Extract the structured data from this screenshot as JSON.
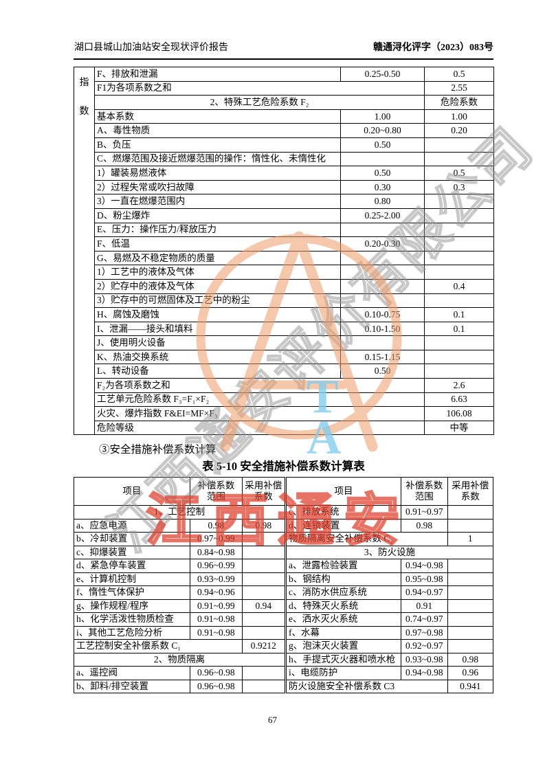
{
  "header": {
    "left": "湖口县城山加油站安全现状评价报告",
    "right": "赣通浔化评字（2023）083号"
  },
  "table1": {
    "side_label": "指数",
    "rows": [
      [
        {
          "t": "F、排放和泄漏"
        },
        {
          "t": "0.25-0.50",
          "al": "c"
        },
        {
          "t": "0.5",
          "al": "c"
        }
      ],
      [
        {
          "t": "F1为各项系数之和",
          "cs": 2
        },
        {
          "t": "2.55",
          "al": "c"
        }
      ],
      [
        {
          "t": "2、特殊工艺危险系数 F₂",
          "cs": 2,
          "al": "c"
        },
        {
          "t": "危险系数",
          "al": "c"
        }
      ],
      [
        {
          "t": "基本系数"
        },
        {
          "t": "1.00",
          "al": "c"
        },
        {
          "t": "1.00",
          "al": "c"
        }
      ],
      [
        {
          "t": "A、毒性物质"
        },
        {
          "t": "0.20~0.80",
          "al": "c"
        },
        {
          "t": "0.20",
          "al": "c"
        }
      ],
      [
        {
          "t": "B、负压"
        },
        {
          "t": "0.50",
          "al": "c"
        },
        {
          "t": ""
        }
      ],
      [
        {
          "t": "C、燃爆范围及接近燃爆范围的操作：惰性化、未惰性化"
        },
        {
          "t": ""
        },
        {
          "t": ""
        }
      ],
      [
        {
          "t": "1）罐装易燃液体"
        },
        {
          "t": "0.50",
          "al": "c"
        },
        {
          "t": "0.5",
          "al": "c"
        }
      ],
      [
        {
          "t": "2）过程失常或吹扫故障"
        },
        {
          "t": "0.30",
          "al": "c"
        },
        {
          "t": "0.3",
          "al": "c"
        }
      ],
      [
        {
          "t": "3）一直在燃爆范围内"
        },
        {
          "t": "0.80",
          "al": "c"
        },
        {
          "t": ""
        }
      ],
      [
        {
          "t": "D、粉尘爆炸"
        },
        {
          "t": "0.25-2.00",
          "al": "c"
        },
        {
          "t": ""
        }
      ],
      [
        {
          "t": "E、压力：操作压力/释放压力"
        },
        {
          "t": ""
        },
        {
          "t": ""
        }
      ],
      [
        {
          "t": "F、低温"
        },
        {
          "t": "0.20-0.30",
          "al": "c"
        },
        {
          "t": ""
        }
      ],
      [
        {
          "t": "G、易燃及不稳定物质的质量"
        },
        {
          "t": ""
        },
        {
          "t": ""
        }
      ],
      [
        {
          "t": "1）工艺中的液体及气体"
        },
        {
          "t": ""
        },
        {
          "t": ""
        }
      ],
      [
        {
          "t": "2）贮存中的液体及气体"
        },
        {
          "t": ""
        },
        {
          "t": "0.4",
          "al": "c"
        }
      ],
      [
        {
          "t": "3）贮存中的可燃固体及工艺中的粉尘"
        },
        {
          "t": ""
        },
        {
          "t": ""
        }
      ],
      [
        {
          "t": "H、腐蚀及磨蚀"
        },
        {
          "t": "0.10-0.75",
          "al": "c"
        },
        {
          "t": "0.1",
          "al": "c"
        }
      ],
      [
        {
          "t": "I、泄漏——接头和填料"
        },
        {
          "t": "0.10-1.50",
          "al": "c"
        },
        {
          "t": "0.1",
          "al": "c"
        }
      ],
      [
        {
          "t": "J、使用明火设备"
        },
        {
          "t": ""
        },
        {
          "t": ""
        }
      ],
      [
        {
          "t": "K、热油交换系统"
        },
        {
          "t": "0.15-1.15",
          "al": "c"
        },
        {
          "t": ""
        }
      ],
      [
        {
          "t": "L、转动设备"
        },
        {
          "t": "0.50",
          "al": "c"
        },
        {
          "t": ""
        }
      ],
      [
        {
          "t": "F₂为各项系数之和",
          "cs": 2
        },
        {
          "t": "2.6",
          "al": "c"
        }
      ],
      [
        {
          "t": "工艺单元危险系数 F₃=F₁×F₂",
          "cs": 2
        },
        {
          "t": "6.63",
          "al": "c"
        }
      ],
      [
        {
          "t": "火灾、爆炸指数 F&EI=MF×F₃",
          "cs": 2
        },
        {
          "t": "106.08",
          "al": "c"
        }
      ],
      [
        {
          "t": "危险等级",
          "cs": 2
        },
        {
          "t": "中等",
          "al": "c"
        }
      ]
    ]
  },
  "section_heading": "③安全措施补偿系数计算",
  "table2": {
    "title": "表 5-10 安全措施补偿系数计算表",
    "headers": [
      "项目",
      "补偿系数\n范围",
      "采用补偿\n系数",
      "项目",
      "补偿系数\n范围",
      "采用补偿\n系数"
    ],
    "rows": [
      [
        {
          "t": "1、工艺控制",
          "cs": 3,
          "al": "c"
        },
        {
          "t": "c、排放系统",
          "d": 1
        },
        {
          "t": "0.91~0.97",
          "al": "c"
        },
        {
          "t": ""
        }
      ],
      [
        {
          "t": "a、应急电源"
        },
        {
          "t": "0.98",
          "al": "c"
        },
        {
          "t": "0.98",
          "al": "c"
        },
        {
          "t": "d、连锁装置",
          "d": 1
        },
        {
          "t": "0.98",
          "al": "c"
        },
        {
          "t": ""
        }
      ],
      [
        {
          "t": "b、冷却装置"
        },
        {
          "t": "0.97~0.99",
          "al": "c"
        },
        {
          "t": ""
        },
        {
          "t": "物质隔离安全补偿系数 C₂",
          "cs": 2,
          "d": 1
        },
        {
          "t": "1",
          "al": "c"
        }
      ],
      [
        {
          "t": "c、抑爆装置"
        },
        {
          "t": "0.84~0.98",
          "al": "c"
        },
        {
          "t": ""
        },
        {
          "t": "3、防火设施",
          "cs": 3,
          "al": "c",
          "d": 1
        }
      ],
      [
        {
          "t": "d、紧急停车装置"
        },
        {
          "t": "0.96~0.99",
          "al": "c"
        },
        {
          "t": ""
        },
        {
          "t": "a、泄露检验装置",
          "d": 1
        },
        {
          "t": "0.94~0.98",
          "al": "c"
        },
        {
          "t": ""
        }
      ],
      [
        {
          "t": "e、计算机控制"
        },
        {
          "t": "0.93~0.99",
          "al": "c"
        },
        {
          "t": ""
        },
        {
          "t": "b、钢结构",
          "d": 1
        },
        {
          "t": "0.95~0.98",
          "al": "c"
        },
        {
          "t": ""
        }
      ],
      [
        {
          "t": "f、惰性气体保护"
        },
        {
          "t": "0.94~0.96",
          "al": "c"
        },
        {
          "t": ""
        },
        {
          "t": "c、消防水供应系统",
          "d": 1
        },
        {
          "t": "0.94~0.97",
          "al": "c"
        },
        {
          "t": ""
        }
      ],
      [
        {
          "t": "g、操作规程/程序"
        },
        {
          "t": "0.91~0.99",
          "al": "c"
        },
        {
          "t": "0.94",
          "al": "c"
        },
        {
          "t": "d、特殊灭火系统",
          "d": 1
        },
        {
          "t": "0.91",
          "al": "c"
        },
        {
          "t": ""
        }
      ],
      [
        {
          "t": "h、化学活泼性物质检查"
        },
        {
          "t": "0.91~0.98",
          "al": "c"
        },
        {
          "t": ""
        },
        {
          "t": "e、洒水灭火系统",
          "d": 1
        },
        {
          "t": "0.74~0.97",
          "al": "c"
        },
        {
          "t": ""
        }
      ],
      [
        {
          "t": "i、其他工艺危险分析"
        },
        {
          "t": "0.91~0.98",
          "al": "c"
        },
        {
          "t": ""
        },
        {
          "t": "f、水幕",
          "d": 1
        },
        {
          "t": "0.97~0.98",
          "al": "c"
        },
        {
          "t": ""
        }
      ],
      [
        {
          "t": "工艺控制安全补偿系数 C₁",
          "cs": 2
        },
        {
          "t": "0.9212",
          "al": "c"
        },
        {
          "t": "g、泡沫灭火装置",
          "d": 1
        },
        {
          "t": "0.92~0.97",
          "al": "c"
        },
        {
          "t": ""
        }
      ],
      [
        {
          "t": "2、物质隔离",
          "cs": 3,
          "al": "c"
        },
        {
          "t": "h、手提式灭火器和喷水枪",
          "d": 1
        },
        {
          "t": "0.93~0.98",
          "al": "c"
        },
        {
          "t": "0.98",
          "al": "c"
        }
      ],
      [
        {
          "t": "a、遥控阀"
        },
        {
          "t": "0.96~0.98",
          "al": "c"
        },
        {
          "t": ""
        },
        {
          "t": "i、电缆防护",
          "d": 1
        },
        {
          "t": "0.94~0.98",
          "al": "c"
        },
        {
          "t": "0.96",
          "al": "c"
        }
      ],
      [
        {
          "t": "b、卸料/排空装置"
        },
        {
          "t": "0.96~0.98",
          "al": "c"
        },
        {
          "t": ""
        },
        {
          "t": "防火设施安全补偿系数 C3",
          "cs": 2,
          "d": 1
        },
        {
          "t": "0.941",
          "al": "c"
        }
      ]
    ]
  },
  "footer": {
    "page_number": "67"
  },
  "watermark": {
    "diagonal_text": "江西通安评价有限公司",
    "red_text": "江西通安",
    "logo_letters": "T\nA",
    "logo_color": "#f09c68",
    "blue_color": "#82cdee",
    "red_color": "#de3c28",
    "gray_color": "#919191"
  }
}
